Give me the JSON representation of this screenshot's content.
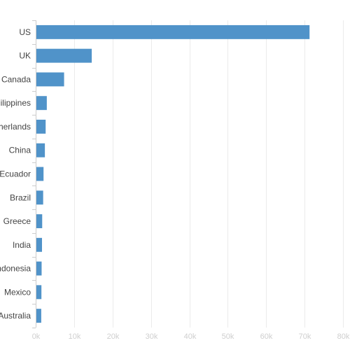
{
  "chart_data": {
    "type": "bar",
    "orientation": "horizontal",
    "title": "",
    "xlabel": "",
    "ylabel": "",
    "categories": [
      "US",
      "UK",
      "Canada",
      "Philippines",
      "Netherlands",
      "China",
      "Ecuador",
      "Brazil",
      "Greece",
      "India",
      "Indonesia",
      "Mexico",
      "Australia"
    ],
    "values": [
      71200,
      14500,
      7300,
      2800,
      2500,
      2300,
      1950,
      1850,
      1600,
      1550,
      1450,
      1400,
      1350
    ],
    "xlim": [
      0,
      80000
    ],
    "xticks": [
      0,
      10000,
      20000,
      30000,
      40000,
      50000,
      60000,
      70000,
      80000
    ],
    "xtick_labels": [
      "0k",
      "10k",
      "20k",
      "30k",
      "40k",
      "50k",
      "60k",
      "70k",
      "80k"
    ],
    "grid": true,
    "legend": "none",
    "bar_color": "#5093c9"
  }
}
